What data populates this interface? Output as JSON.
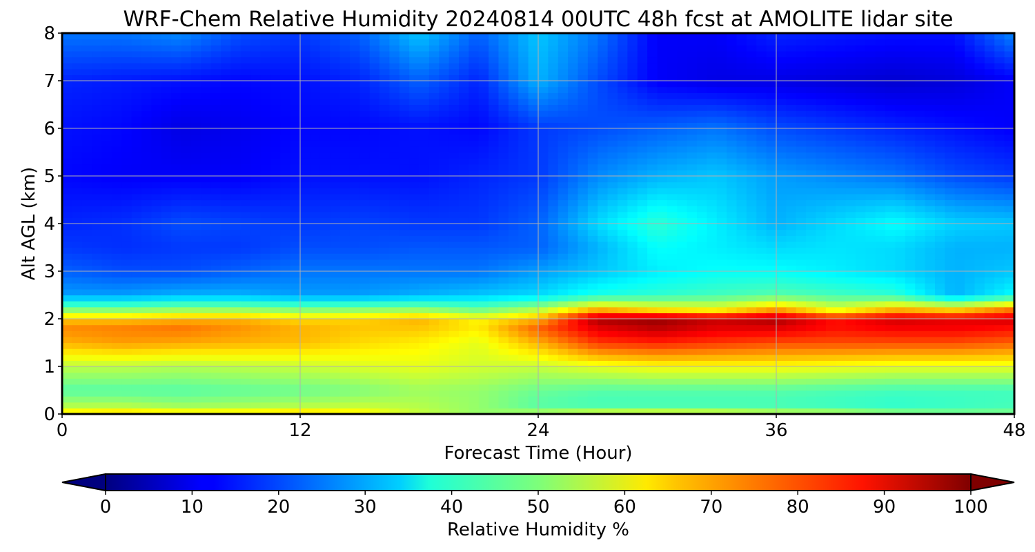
{
  "chart_data": {
    "type": "heatmap",
    "title": "WRF-Chem Relative Humidity 20240814 00UTC 48h fcst at AMOLITE lidar site",
    "xlabel": "Forecast Time (Hour)",
    "ylabel": "Alt AGL (km)",
    "xlim": [
      0,
      48
    ],
    "ylim": [
      0,
      8
    ],
    "x_ticks": [
      0,
      12,
      24,
      36,
      48
    ],
    "y_ticks": [
      0,
      1,
      2,
      3,
      4,
      5,
      6,
      7,
      8
    ],
    "grid": true,
    "colormap": "jet",
    "colorbar": {
      "label": "Relative Humidity %",
      "range": [
        0,
        100
      ],
      "ticks": [
        0,
        10,
        20,
        30,
        40,
        50,
        60,
        70,
        80,
        90,
        100
      ],
      "extend": "both",
      "orientation": "horizontal",
      "placement": "bottom"
    },
    "x": [
      0,
      3,
      6,
      9,
      12,
      15,
      18,
      21,
      24,
      27,
      30,
      33,
      36,
      39,
      42,
      45,
      48
    ],
    "y": [
      0,
      0.2,
      0.5,
      1.0,
      1.5,
      1.8,
      2.0,
      2.2,
      2.5,
      3.0,
      3.5,
      4.0,
      5.0,
      6.0,
      7.0,
      8.0
    ],
    "values": [
      [
        66,
        68,
        66,
        66,
        68,
        65,
        57,
        52,
        55,
        60,
        61,
        60,
        57,
        56,
        52,
        50,
        50
      ],
      [
        54,
        54,
        52,
        53,
        54,
        56,
        55,
        52,
        46,
        44,
        44,
        44,
        44,
        43,
        42,
        43,
        44
      ],
      [
        46,
        46,
        46,
        47,
        48,
        50,
        53,
        52,
        48,
        46,
        46,
        46,
        46,
        45,
        44,
        44,
        44
      ],
      [
        56,
        56,
        55,
        56,
        57,
        59,
        60,
        58,
        57,
        60,
        62,
        62,
        62,
        61,
        60,
        60,
        60
      ],
      [
        70,
        72,
        71,
        70,
        69,
        66,
        64,
        60,
        70,
        82,
        84,
        82,
        80,
        80,
        80,
        80,
        78
      ],
      [
        74,
        75,
        76,
        73,
        70,
        68,
        68,
        64,
        78,
        90,
        94,
        90,
        90,
        86,
        88,
        88,
        86
      ],
      [
        68,
        68,
        70,
        70,
        66,
        67,
        70,
        63,
        70,
        96,
        98,
        93,
        96,
        86,
        92,
        90,
        92
      ],
      [
        50,
        50,
        52,
        52,
        50,
        51,
        52,
        48,
        55,
        70,
        64,
        62,
        72,
        60,
        70,
        66,
        76
      ],
      [
        28,
        28,
        30,
        30,
        28,
        28,
        30,
        32,
        34,
        40,
        42,
        44,
        46,
        44,
        42,
        30,
        38
      ],
      [
        22,
        20,
        20,
        22,
        24,
        24,
        24,
        24,
        28,
        32,
        36,
        38,
        38,
        36,
        34,
        30,
        32
      ],
      [
        18,
        17,
        18,
        18,
        20,
        20,
        21,
        21,
        22,
        30,
        38,
        36,
        34,
        35,
        34,
        30,
        30
      ],
      [
        16,
        17,
        20,
        19,
        18,
        19,
        18,
        18,
        22,
        34,
        42,
        36,
        30,
        34,
        38,
        33,
        32
      ],
      [
        13,
        12,
        12,
        12,
        14,
        14,
        14,
        16,
        18,
        26,
        30,
        32,
        28,
        26,
        24,
        20,
        18
      ],
      [
        14,
        13,
        10,
        11,
        13,
        13,
        14,
        13,
        18,
        20,
        22,
        24,
        20,
        18,
        16,
        14,
        12
      ],
      [
        16,
        15,
        14,
        13,
        14,
        16,
        22,
        16,
        30,
        20,
        12,
        10,
        10,
        9,
        8,
        9,
        12
      ],
      [
        24,
        24,
        26,
        20,
        18,
        22,
        32,
        22,
        32,
        24,
        12,
        12,
        16,
        15,
        14,
        14,
        26
      ]
    ]
  }
}
